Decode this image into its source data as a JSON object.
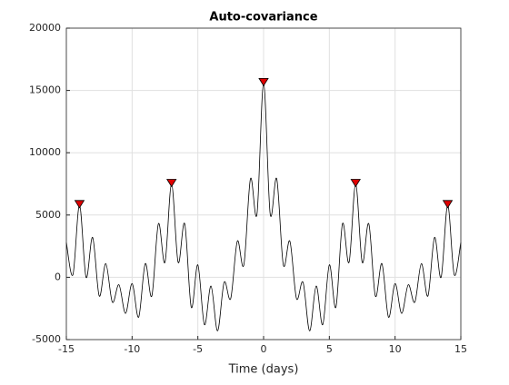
{
  "chart_data": {
    "type": "line",
    "title": "Auto-covariance",
    "xlabel": "Time (days)",
    "x": [
      -15,
      -14.5,
      -14,
      -13.5,
      -13,
      -12.5,
      -12,
      -11.5,
      -11,
      -10.5,
      -10,
      -9.5,
      -9,
      -8.5,
      -8,
      -7.5,
      -7,
      -6.5,
      -6,
      -5.5,
      -5,
      -4.5,
      -4,
      -3.5,
      -3,
      -2.5,
      -2,
      -1.5,
      -1,
      -0.5,
      0,
      0.5,
      1,
      1.5,
      2,
      2.5,
      3,
      3.5,
      4,
      4.5,
      5,
      5.5,
      6,
      6.5,
      7,
      7.5,
      8,
      8.5,
      9,
      9.5,
      10,
      10.5,
      11,
      11.5,
      12,
      12.5,
      13,
      13.5,
      14,
      14.5,
      15
    ],
    "series": [
      {
        "color": "#000000",
        "values": [
          2800,
          200,
          5800,
          0,
          3200,
          -1500,
          1100,
          -2000,
          -600,
          -2900,
          -500,
          -3200,
          1100,
          -1500,
          4300,
          1200,
          7500,
          1200,
          4300,
          -2400,
          1000,
          -3800,
          -700,
          -4300,
          -400,
          -1700,
          2900,
          1000,
          7900,
          5100,
          15600,
          5100,
          7900,
          1000,
          2900,
          -1700,
          -400,
          -4300,
          -700,
          -3800,
          1000,
          -2400,
          4300,
          1200,
          7500,
          1200,
          4300,
          -1500,
          1100,
          -3200,
          -500,
          -2900,
          -600,
          -2000,
          1100,
          -1500,
          3200,
          0,
          5800,
          200,
          2800
        ]
      }
    ],
    "markers": {
      "x": [
        -14,
        -7,
        0,
        7,
        14
      ],
      "values": [
        5800,
        7500,
        15600,
        7500,
        5800
      ],
      "color": "#e00000"
    },
    "xlim": [
      -15,
      15
    ],
    "xticks": [
      -15,
      -10,
      -5,
      0,
      5,
      10,
      15
    ],
    "ylim": [
      -5000,
      20000
    ],
    "yticks": [
      -5000,
      0,
      5000,
      10000,
      15000,
      20000
    ],
    "grid": true
  }
}
